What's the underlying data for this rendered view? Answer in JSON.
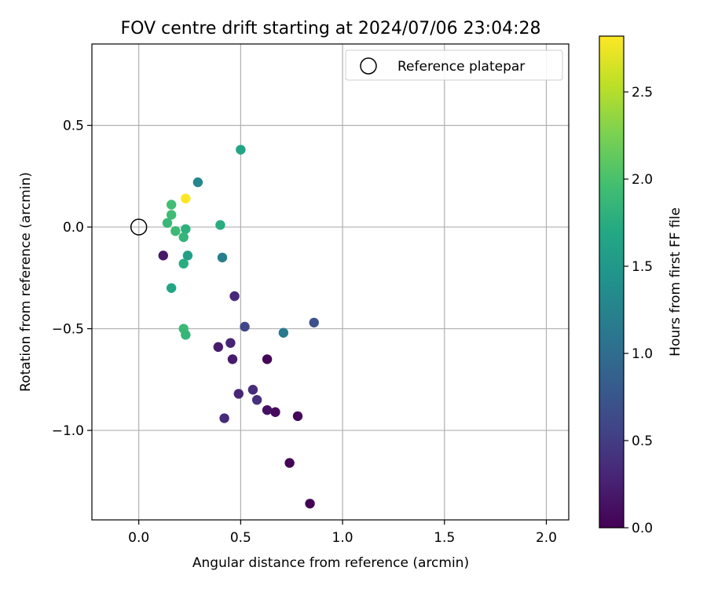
{
  "chart_data": {
    "type": "scatter",
    "title": "FOV centre drift starting at 2024/07/06 23:04:28",
    "xlabel": "Angular distance from reference (arcmin)",
    "ylabel": "Rotation from reference (arcmin)",
    "xlim": [
      -0.23,
      2.11
    ],
    "ylim": [
      -1.44,
      0.9
    ],
    "xticks": [
      0.0,
      0.5,
      1.0,
      1.5,
      2.0
    ],
    "xtick_labels": [
      "0.0",
      "0.5",
      "1.0",
      "1.5",
      "2.0"
    ],
    "yticks": [
      0.5,
      0.0,
      -0.5,
      -1.0
    ],
    "ytick_labels": [
      "0.5",
      "0.0",
      "−0.5",
      "−1.0"
    ],
    "grid": true,
    "legend": {
      "placement": "top-right",
      "label": "Reference platepar"
    },
    "reference_point": {
      "x": 0.0,
      "y": 0.0
    },
    "colorbar": {
      "label": "Hours from first FF file",
      "colormap": "viridis",
      "range": [
        0.0,
        2.82
      ],
      "ticks": [
        0.0,
        0.5,
        1.0,
        1.5,
        2.0,
        2.5
      ],
      "tick_labels": [
        "0.0",
        "0.5",
        "1.0",
        "1.5",
        "2.0",
        "2.5"
      ]
    },
    "points": [
      {
        "x": 0.84,
        "y": -1.36,
        "c": 0.0
      },
      {
        "x": 0.74,
        "y": -1.16,
        "c": 0.02
      },
      {
        "x": 0.78,
        "y": -0.93,
        "c": 0.05
      },
      {
        "x": 0.67,
        "y": -0.91,
        "c": 0.08
      },
      {
        "x": 0.63,
        "y": -0.65,
        "c": 0.03
      },
      {
        "x": 0.63,
        "y": -0.9,
        "c": 0.12
      },
      {
        "x": 0.58,
        "y": -0.85,
        "c": 0.4
      },
      {
        "x": 0.56,
        "y": -0.8,
        "c": 0.36
      },
      {
        "x": 0.49,
        "y": -0.82,
        "c": 0.3
      },
      {
        "x": 0.42,
        "y": -0.94,
        "c": 0.35
      },
      {
        "x": 0.46,
        "y": -0.65,
        "c": 0.2
      },
      {
        "x": 0.45,
        "y": -0.57,
        "c": 0.28
      },
      {
        "x": 0.39,
        "y": -0.59,
        "c": 0.2
      },
      {
        "x": 0.47,
        "y": -0.34,
        "c": 0.33
      },
      {
        "x": 0.12,
        "y": -0.14,
        "c": 0.18
      },
      {
        "x": 0.52,
        "y": -0.49,
        "c": 0.6
      },
      {
        "x": 0.86,
        "y": -0.47,
        "c": 0.7
      },
      {
        "x": 0.71,
        "y": -0.52,
        "c": 1.15
      },
      {
        "x": 0.41,
        "y": -0.15,
        "c": 1.2
      },
      {
        "x": 0.29,
        "y": 0.22,
        "c": 1.3
      },
      {
        "x": 0.5,
        "y": 0.38,
        "c": 1.65
      },
      {
        "x": 0.4,
        "y": 0.01,
        "c": 1.75
      },
      {
        "x": 0.24,
        "y": -0.14,
        "c": 1.6
      },
      {
        "x": 0.22,
        "y": -0.18,
        "c": 1.75
      },
      {
        "x": 0.16,
        "y": -0.3,
        "c": 1.65
      },
      {
        "x": 0.22,
        "y": -0.5,
        "c": 1.9
      },
      {
        "x": 0.23,
        "y": -0.53,
        "c": 1.85
      },
      {
        "x": 0.23,
        "y": -0.01,
        "c": 1.8
      },
      {
        "x": 0.22,
        "y": -0.05,
        "c": 1.85
      },
      {
        "x": 0.18,
        "y": -0.02,
        "c": 1.9
      },
      {
        "x": 0.14,
        "y": 0.02,
        "c": 1.88
      },
      {
        "x": 0.16,
        "y": 0.06,
        "c": 1.93
      },
      {
        "x": 0.16,
        "y": 0.11,
        "c": 1.95
      },
      {
        "x": 0.23,
        "y": 0.14,
        "c": 2.82
      }
    ]
  }
}
